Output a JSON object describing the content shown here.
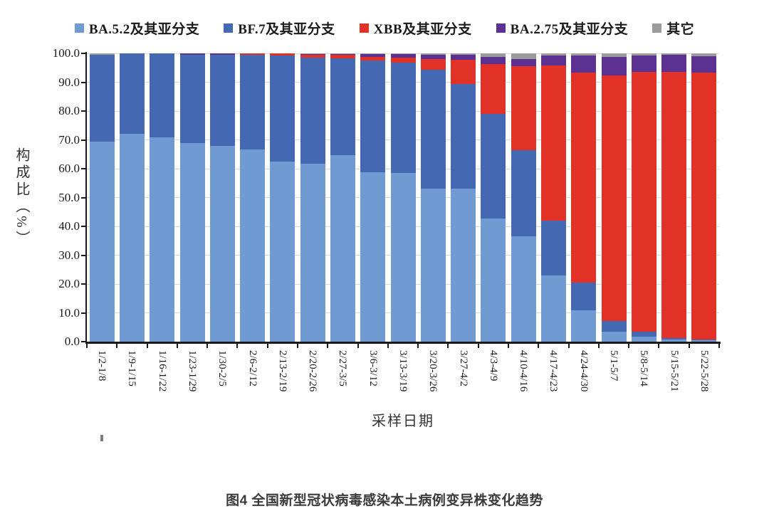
{
  "caption": "图4 全国新型冠状病毒感染本土病例变异株变化趋势",
  "chart_data": {
    "type": "bar",
    "stacked": true,
    "title": "",
    "xlabel": "采样日期",
    "ylabel": "构成比（%）",
    "ylim": [
      0,
      100
    ],
    "ytick_step": 10,
    "ytick_labels": [
      "0.0",
      "10.0",
      "20.0",
      "30.0",
      "40.0",
      "50.0",
      "60.0",
      "70.0",
      "80.0",
      "90.0",
      "100.0"
    ],
    "grid": true,
    "grid_color": "#d9d9d9",
    "axis_color": "#1a1a1a",
    "legend_position": "top",
    "categories": [
      "1/2-1/8",
      "1/9-1/15",
      "1/16-1/22",
      "1/23-1/29",
      "1/30-2/5",
      "2/6-2/12",
      "2/13-2/19",
      "2/20-2/26",
      "2/27-3/5",
      "3/6-3/12",
      "3/13-3/19",
      "3/20-3/26",
      "3/27-4/2",
      "4/3-4/9",
      "4/10-4/16",
      "4/17-4/23",
      "4/24-4/30",
      "5/1-5/7",
      "5/8-5/14",
      "5/15-5/21",
      "5/22-5/28"
    ],
    "series": [
      {
        "name": "BA.5.2及其亚分支",
        "color": "#6F9AD2",
        "values": [
          69.4,
          72.2,
          70.8,
          68.8,
          67.8,
          66.7,
          62.4,
          61.8,
          64.6,
          58.7,
          58.4,
          53.0,
          53.0,
          42.7,
          36.6,
          22.9,
          10.8,
          3.5,
          1.8,
          0.8,
          0.4
        ]
      },
      {
        "name": "BF.7及其亚分支",
        "color": "#4568B2",
        "values": [
          30.1,
          27.8,
          29.2,
          30.7,
          31.7,
          32.7,
          36.9,
          36.7,
          33.6,
          38.9,
          38.3,
          41.3,
          36.3,
          36.2,
          29.8,
          19.1,
          9.7,
          3.7,
          1.7,
          0.4,
          0.3
        ]
      },
      {
        "name": "XBB及其亚分支",
        "color": "#E23126",
        "values": [
          0,
          0,
          0,
          0,
          0,
          0.6,
          0.7,
          1.0,
          1.3,
          1.2,
          1.9,
          3.7,
          8.6,
          17.4,
          29.1,
          53.7,
          72.9,
          85.1,
          90.0,
          92.3,
          92.6
        ]
      },
      {
        "name": "BA.2.75及其亚分支",
        "color": "#5D3192",
        "values": [
          0,
          0,
          0,
          0.5,
          0.5,
          0,
          0,
          0.2,
          0.2,
          1.0,
          1.2,
          1.5,
          1.7,
          2.5,
          2.5,
          3.5,
          5.9,
          6.4,
          5.8,
          5.9,
          5.8
        ]
      },
      {
        "name": "其它",
        "color": "#9B9B9B",
        "values": [
          0.5,
          0,
          0,
          0,
          0,
          0,
          0,
          0.3,
          0.3,
          0.2,
          0.2,
          0.5,
          0.4,
          1.2,
          2.0,
          0.8,
          0.7,
          1.3,
          0.7,
          0.6,
          0.9
        ]
      }
    ]
  }
}
